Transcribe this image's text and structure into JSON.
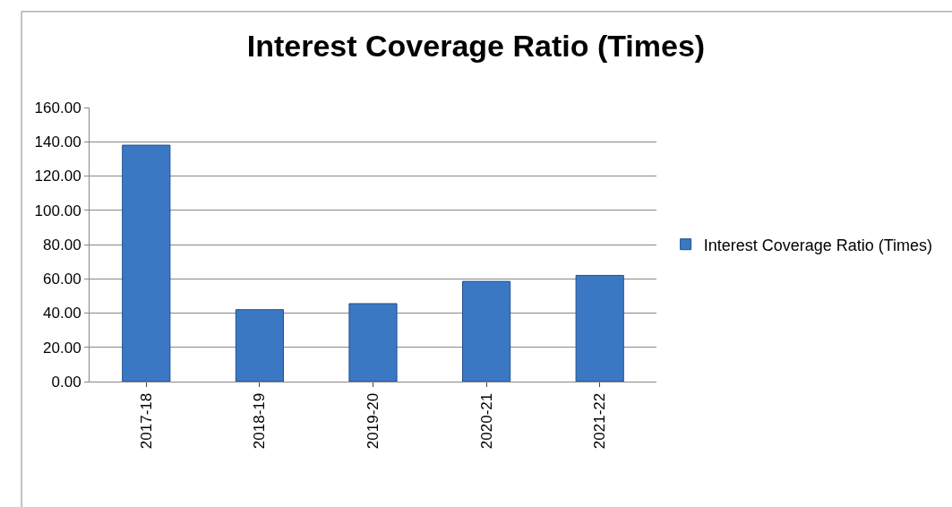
{
  "chart_data": {
    "type": "bar",
    "title": "Interest Coverage Ratio (Times)",
    "categories": [
      "2017-18",
      "2018-19",
      "2019-20",
      "2020-21",
      "2021-22"
    ],
    "series": [
      {
        "name": "Interest Coverage Ratio (Times)",
        "color": "#3b78c4",
        "values": [
          138,
          42,
          45.5,
          58.5,
          62
        ]
      }
    ],
    "ylim": [
      0,
      160
    ],
    "yticks": [
      {
        "value": 0,
        "label": "0.00"
      },
      {
        "value": 20,
        "label": "20.00"
      },
      {
        "value": 40,
        "label": "40.00"
      },
      {
        "value": 60,
        "label": "60.00"
      },
      {
        "value": 80,
        "label": "80.00"
      },
      {
        "value": 100,
        "label": "100.00"
      },
      {
        "value": 120,
        "label": "120.00"
      },
      {
        "value": 140,
        "label": "140.00"
      },
      {
        "value": 160,
        "label": "160.00"
      }
    ],
    "grid": "y",
    "legend": "right"
  }
}
